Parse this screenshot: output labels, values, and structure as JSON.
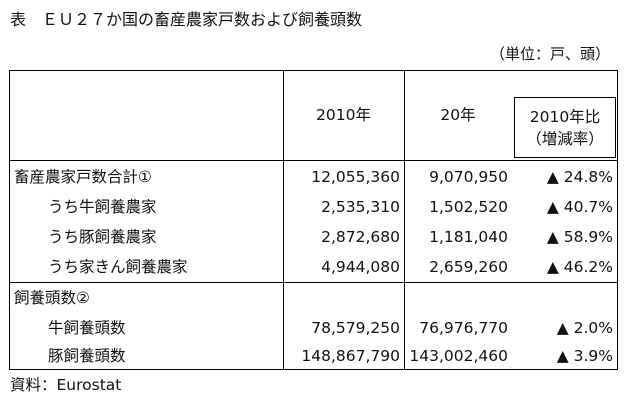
{
  "title": "表　ＥＵ２７か国の畜産農家戸数および飼養頭数",
  "unit": "（単位：戸、頭）",
  "columns": {
    "col1": "2010年",
    "col2": "20年",
    "col3_line1": "2010年比",
    "col3_line2": "（増減率）"
  },
  "rows": [
    {
      "label": "畜産農家戸数合計①",
      "v2010": "12,055,360",
      "v2020": "9,070,950",
      "change": "▲ 24.8%"
    },
    {
      "label": "うち牛飼養農家",
      "v2010": "2,535,310",
      "v2020": "1,502,520",
      "change": "▲ 40.7%"
    },
    {
      "label": "うち豚飼養農家",
      "v2010": "2,872,680",
      "v2020": "1,181,040",
      "change": "▲ 58.9%"
    },
    {
      "label": "うち家きん飼養農家",
      "v2010": "4,944,080",
      "v2020": "2,659,260",
      "change": "▲ 46.2%"
    },
    {
      "label": "飼養頭数②",
      "v2010": "",
      "v2020": "",
      "change": ""
    },
    {
      "label": "牛飼養頭数",
      "v2010": "78,579,250",
      "v2020": "76,976,770",
      "change": "▲ 2.0%"
    },
    {
      "label": "豚飼養頭数",
      "v2010": "148,867,790",
      "v2020": "143,002,460",
      "change": "▲ 3.9%"
    }
  ],
  "source": "資料：Eurostat"
}
